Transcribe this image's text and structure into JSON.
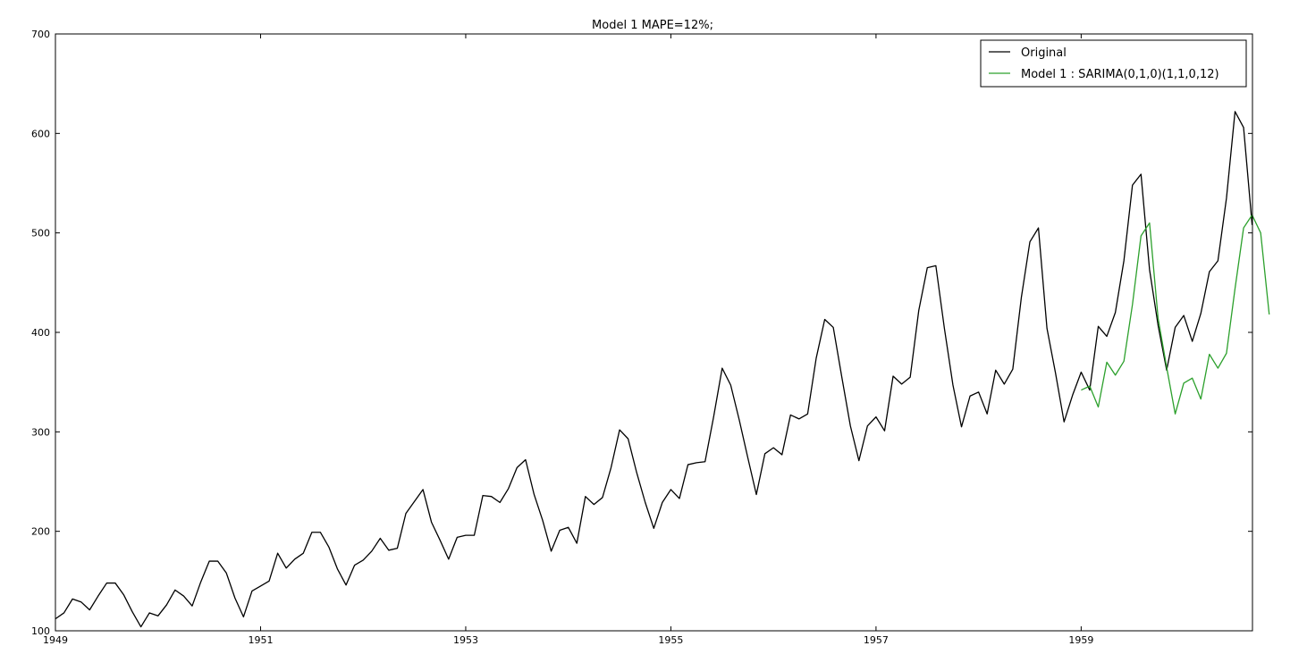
{
  "chart_data": {
    "type": "line",
    "title": "Model 1 MAPE=12%;",
    "xlabel": "",
    "ylabel": "",
    "xlim": [
      1949,
      1960.67
    ],
    "ylim": [
      100,
      700
    ],
    "x_ticks": [
      "1949",
      "1951",
      "1953",
      "1955",
      "1957",
      "1959"
    ],
    "y_ticks": [
      "100",
      "200",
      "300",
      "400",
      "500",
      "600",
      "700"
    ],
    "grid": false,
    "legend_position": "top-right",
    "series": [
      {
        "name": "Original",
        "color": "#000000",
        "x_start": 1949,
        "x_step_months": 1,
        "values": [
          112,
          118,
          132,
          129,
          121,
          135,
          148,
          148,
          136,
          119,
          104,
          118,
          115,
          126,
          141,
          135,
          125,
          149,
          170,
          170,
          158,
          133,
          114,
          140,
          145,
          150,
          178,
          163,
          172,
          178,
          199,
          199,
          184,
          162,
          146,
          166,
          171,
          180,
          193,
          181,
          183,
          218,
          230,
          242,
          209,
          191,
          172,
          194,
          196,
          196,
          236,
          235,
          229,
          243,
          264,
          272,
          237,
          211,
          180,
          201,
          204,
          188,
          235,
          227,
          234,
          264,
          302,
          293,
          259,
          229,
          203,
          229,
          242,
          233,
          267,
          269,
          270,
          315,
          364,
          347,
          312,
          274,
          237,
          278,
          284,
          277,
          317,
          313,
          318,
          374,
          413,
          405,
          355,
          306,
          271,
          306,
          315,
          301,
          356,
          348,
          355,
          422,
          465,
          467,
          404,
          347,
          305,
          336,
          340,
          318,
          362,
          348,
          363,
          435,
          491,
          505,
          404,
          359,
          310,
          337,
          360,
          342,
          406,
          396,
          420,
          472,
          548,
          559,
          463,
          407,
          362,
          405,
          417,
          391,
          419,
          461,
          472,
          535,
          622,
          606,
          508
        ]
      },
      {
        "name": "Model 1 : SARIMA(0,1,0)(1,1,0,12)",
        "color": "#2ca02c",
        "x_start": 1959,
        "x_step_months": 1,
        "values": [
          342,
          346,
          325,
          370,
          357,
          371,
          428,
          497,
          510,
          414,
          365,
          318,
          349,
          354,
          333,
          378,
          364,
          379,
          444,
          505,
          518,
          500,
          418
        ]
      }
    ]
  }
}
